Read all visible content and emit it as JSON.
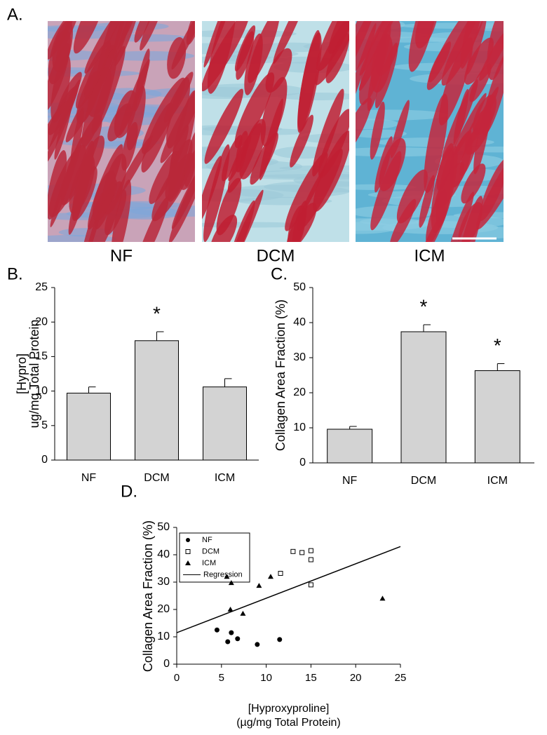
{
  "panel_a": {
    "label": "A.",
    "captions": [
      "NF",
      "DCM",
      "ICM"
    ]
  },
  "chart_data": [
    {
      "type": "bar",
      "label": "B.",
      "ylabel": [
        "[Hypro]",
        "ug/mg Total Protein"
      ],
      "categories": [
        "NF",
        "DCM",
        "ICM"
      ],
      "values": [
        9.7,
        17.3,
        10.6
      ],
      "errors": [
        0.9,
        1.3,
        1.2
      ],
      "color": "#d3d3d3",
      "ylim": [
        0,
        25
      ],
      "yticks": [
        0,
        5,
        10,
        15,
        20,
        25
      ],
      "annotations": [
        {
          "text": "*",
          "category": "DCM"
        }
      ]
    },
    {
      "type": "bar",
      "label": "C.",
      "ylabel": [
        "Collagen Area Fraction (%)"
      ],
      "categories": [
        "NF",
        "DCM",
        "ICM"
      ],
      "values": [
        9.6,
        37.4,
        26.3
      ],
      "errors": [
        0.8,
        2.0,
        2.0
      ],
      "color": "#d3d3d3",
      "ylim": [
        0,
        50
      ],
      "yticks": [
        0,
        10,
        20,
        30,
        40,
        50
      ],
      "annotations": [
        {
          "text": "*",
          "category": "DCM"
        },
        {
          "text": "*",
          "category": "ICM"
        }
      ]
    },
    {
      "type": "scatter",
      "label": "D.",
      "ylabel": [
        "Collagen Area Fraction (%)"
      ],
      "xlabel": [
        "[Hyproxyproline]",
        "(µg/mg Total Protein)"
      ],
      "xlim": [
        0,
        25
      ],
      "xticks": [
        0,
        5,
        10,
        15,
        20,
        25
      ],
      "ylim": [
        0,
        50
      ],
      "yticks": [
        0,
        10,
        20,
        30,
        40,
        50
      ],
      "legend": "top-left",
      "series": [
        {
          "name": "NF",
          "marker": "circle",
          "color": "#000000",
          "x": [
            4.5,
            5.7,
            6.1,
            6.8,
            9.0,
            11.5
          ],
          "values": [
            12.5,
            8.2,
            11.5,
            9.3,
            7.2,
            9.0
          ]
        },
        {
          "name": "DCM",
          "marker": "square",
          "color": "#000000",
          "x": [
            11.6,
            13.0,
            14.0,
            15.0,
            15.0,
            15.0
          ],
          "values": [
            33.2,
            41.2,
            40.8,
            41.5,
            38.2,
            29.0
          ]
        },
        {
          "name": "ICM",
          "marker": "triangle",
          "color": "#000000",
          "x": [
            5.6,
            6.1,
            6.0,
            7.4,
            9.2,
            10.5,
            23.0
          ],
          "values": [
            32.0,
            29.7,
            20.0,
            18.5,
            28.7,
            32.0,
            24.0
          ]
        },
        {
          "name": "Regression",
          "marker": "line",
          "color": "#000000",
          "x": [
            0,
            25
          ],
          "values": [
            11.5,
            43
          ]
        }
      ]
    }
  ]
}
